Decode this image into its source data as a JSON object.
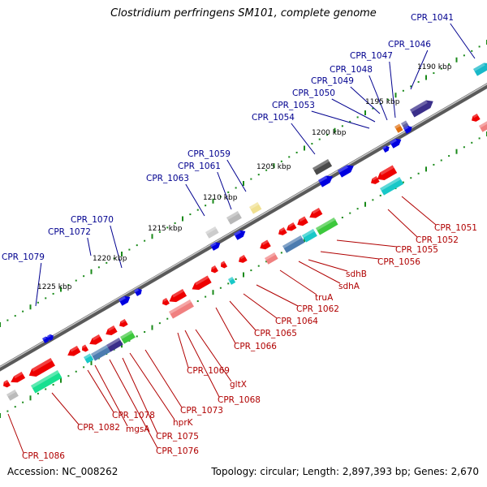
{
  "title": "Clostridium perfringens SM101, complete genome",
  "footer": {
    "accession": "Accession: NC_008262",
    "summary": "Topology: circular; Length: 2,897,393 bp; Genes: 2,670"
  },
  "colors": {
    "backbone": "#6e6e6e",
    "tick": "#1a8a1a",
    "label_upper": "#00008f",
    "label_lower": "#b00000",
    "forward_gene": "#0000e0",
    "reverse_gene": "#ee0000"
  },
  "position_labels": [
    "1190 kbp",
    "1195 kbp",
    "1200 kbp",
    "1205 kbp",
    "1210 kbp",
    "1215 kbp",
    "1220 kbp",
    "1225 kbp"
  ],
  "upper_gene_labels": [
    "CPR_1041",
    "CPR_1046",
    "CPR_1047",
    "CPR_1048",
    "CPR_1049",
    "CPR_1050",
    "CPR_1053",
    "CPR_1054",
    "CPR_1059",
    "CPR_1061",
    "CPR_1063",
    "CPR_1070",
    "CPR_1072",
    "CPR_1079"
  ],
  "lower_gene_labels": [
    "CPR_1051",
    "CPR_1052",
    "CPR_1055",
    "CPR_1056",
    "sdhB",
    "sdhA",
    "truA",
    "CPR_1062",
    "CPR_1064",
    "CPR_1065",
    "CPR_1066",
    "CPR_1069",
    "gltX",
    "CPR_1068",
    "CPR_1073",
    "hprK",
    "CPR_1075",
    "CPR_1076",
    "mgsA",
    "CPR_1078",
    "CPR_1082",
    "CPR_1086"
  ]
}
